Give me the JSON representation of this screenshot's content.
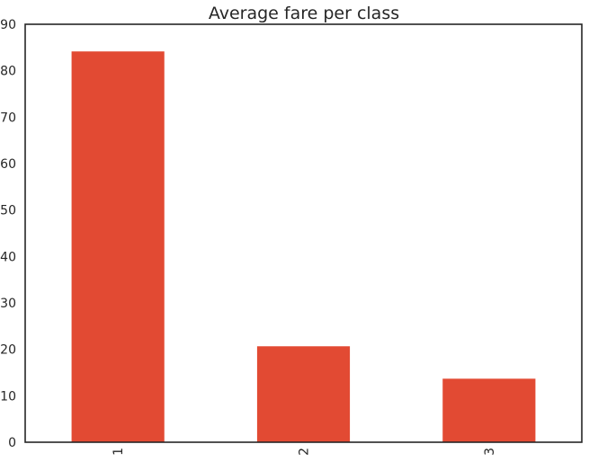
{
  "chart_data": {
    "type": "bar",
    "title": "Average fare per class",
    "xlabel": "",
    "ylabel": "",
    "categories": [
      "1",
      "2",
      "3"
    ],
    "values": [
      84.15,
      20.66,
      13.68
    ],
    "ylim": [
      0,
      90
    ],
    "yticks": [
      "0",
      "10",
      "20",
      "30",
      "40",
      "50",
      "60",
      "70",
      "80",
      "90"
    ],
    "grid": false,
    "bar_color": "#e24a33",
    "axis_color": "#262626"
  }
}
